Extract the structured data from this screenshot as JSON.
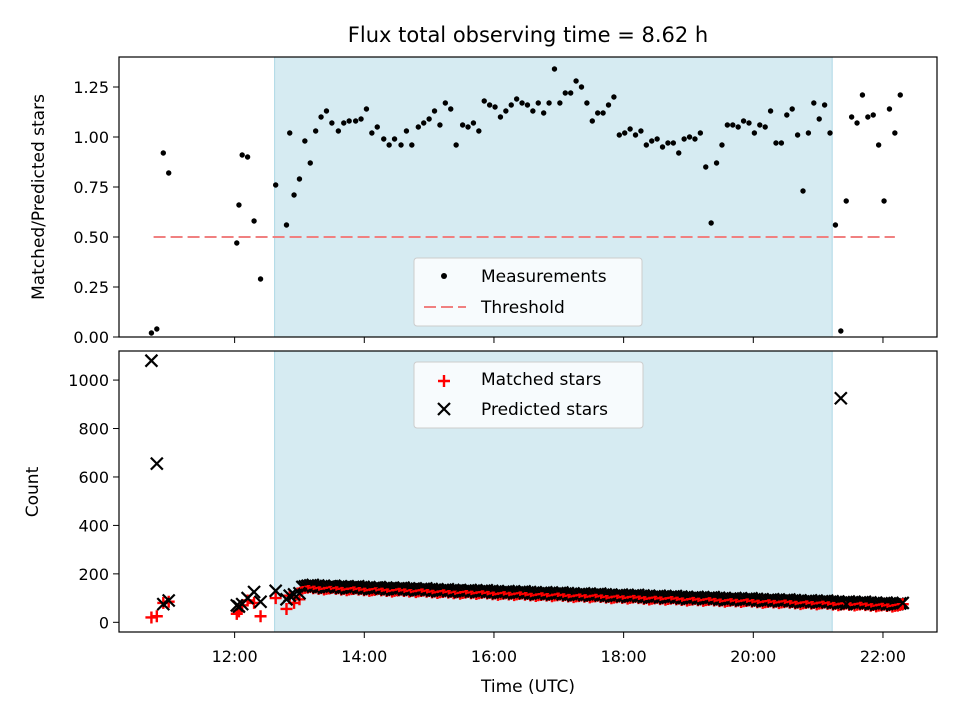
{
  "chart_data": [
    {
      "type": "scatter",
      "title": "Flux total observing time = 8.62 h",
      "xlabel": "",
      "ylabel": "Matched/Predicted stars",
      "xlim": [
        "10:13",
        "22:50"
      ],
      "ylim": [
        0,
        1.4
      ],
      "yticks": [
        "0.00",
        "0.25",
        "0.50",
        "0.75",
        "1.00",
        "1.25"
      ],
      "shaded_span": [
        "12:37",
        "21:13"
      ],
      "legend_position": "lower-center",
      "series": [
        {
          "name": "Measurements",
          "marker": "dot",
          "color": "#000000",
          "points": [
            [
              "10:43",
              0.02
            ],
            [
              "10:48",
              0.04
            ],
            [
              "10:54",
              0.92
            ],
            [
              "10:59",
              0.82
            ],
            [
              "12:02",
              0.47
            ],
            [
              "12:04",
              0.66
            ],
            [
              "12:07",
              0.91
            ],
            [
              "12:12",
              0.9
            ],
            [
              "12:18",
              0.58
            ],
            [
              "12:24",
              0.29
            ],
            [
              "12:38",
              0.76
            ],
            [
              "12:48",
              0.56
            ],
            [
              "12:51",
              1.02
            ],
            [
              "12:55",
              0.71
            ],
            [
              "13:00",
              0.79
            ],
            [
              "13:05",
              0.98
            ],
            [
              "13:10",
              0.87
            ],
            [
              "13:15",
              1.03
            ],
            [
              "13:20",
              1.1
            ],
            [
              "13:25",
              1.13
            ],
            [
              "13:30",
              1.07
            ],
            [
              "13:36",
              1.03
            ],
            [
              "13:41",
              1.07
            ],
            [
              "13:46",
              1.08
            ],
            [
              "13:52",
              1.08
            ],
            [
              "13:57",
              1.09
            ],
            [
              "14:02",
              1.14
            ],
            [
              "14:07",
              1.02
            ],
            [
              "14:12",
              1.05
            ],
            [
              "14:18",
              0.99
            ],
            [
              "14:23",
              0.96
            ],
            [
              "14:28",
              0.99
            ],
            [
              "14:34",
              0.96
            ],
            [
              "14:39",
              1.03
            ],
            [
              "14:44",
              0.96
            ],
            [
              "14:50",
              1.05
            ],
            [
              "14:55",
              1.07
            ],
            [
              "15:00",
              1.09
            ],
            [
              "15:05",
              1.13
            ],
            [
              "15:10",
              1.06
            ],
            [
              "15:15",
              1.17
            ],
            [
              "15:20",
              1.14
            ],
            [
              "15:25",
              0.96
            ],
            [
              "15:31",
              1.06
            ],
            [
              "15:36",
              1.05
            ],
            [
              "15:41",
              1.07
            ],
            [
              "15:46",
              1.03
            ],
            [
              "15:51",
              1.18
            ],
            [
              "15:56",
              1.16
            ],
            [
              "16:01",
              1.15
            ],
            [
              "16:06",
              1.1
            ],
            [
              "16:11",
              1.13
            ],
            [
              "16:16",
              1.16
            ],
            [
              "16:21",
              1.19
            ],
            [
              "16:26",
              1.17
            ],
            [
              "16:31",
              1.16
            ],
            [
              "16:36",
              1.13
            ],
            [
              "16:41",
              1.17
            ],
            [
              "16:46",
              1.12
            ],
            [
              "16:51",
              1.17
            ],
            [
              "16:56",
              1.34
            ],
            [
              "17:01",
              1.17
            ],
            [
              "17:06",
              1.22
            ],
            [
              "17:11",
              1.22
            ],
            [
              "17:16",
              1.28
            ],
            [
              "17:21",
              1.25
            ],
            [
              "17:26",
              1.17
            ],
            [
              "17:31",
              1.08
            ],
            [
              "17:36",
              1.12
            ],
            [
              "17:41",
              1.12
            ],
            [
              "17:46",
              1.16
            ],
            [
              "17:51",
              1.2
            ],
            [
              "17:56",
              1.01
            ],
            [
              "18:01",
              1.02
            ],
            [
              "18:06",
              1.04
            ],
            [
              "18:11",
              1.01
            ],
            [
              "18:16",
              1.03
            ],
            [
              "18:21",
              0.96
            ],
            [
              "18:26",
              0.98
            ],
            [
              "18:31",
              0.99
            ],
            [
              "18:36",
              0.95
            ],
            [
              "18:41",
              0.97
            ],
            [
              "18:46",
              0.97
            ],
            [
              "18:51",
              0.92
            ],
            [
              "18:56",
              0.99
            ],
            [
              "19:01",
              1.0
            ],
            [
              "19:06",
              0.99
            ],
            [
              "19:11",
              1.02
            ],
            [
              "19:16",
              0.85
            ],
            [
              "19:21",
              0.57
            ],
            [
              "19:26",
              0.87
            ],
            [
              "19:31",
              0.96
            ],
            [
              "19:36",
              1.06
            ],
            [
              "19:41",
              1.06
            ],
            [
              "19:46",
              1.05
            ],
            [
              "19:51",
              1.08
            ],
            [
              "19:56",
              1.07
            ],
            [
              "20:01",
              1.02
            ],
            [
              "20:06",
              1.06
            ],
            [
              "20:11",
              1.05
            ],
            [
              "20:16",
              1.13
            ],
            [
              "20:21",
              0.97
            ],
            [
              "20:26",
              0.97
            ],
            [
              "20:31",
              1.11
            ],
            [
              "20:36",
              1.14
            ],
            [
              "20:41",
              1.01
            ],
            [
              "20:46",
              0.73
            ],
            [
              "20:51",
              1.02
            ],
            [
              "20:56",
              1.17
            ],
            [
              "21:01",
              1.09
            ],
            [
              "21:06",
              1.16
            ],
            [
              "21:11",
              1.02
            ],
            [
              "21:16",
              0.56
            ],
            [
              "21:21",
              0.03
            ],
            [
              "21:26",
              0.68
            ],
            [
              "21:31",
              1.1
            ],
            [
              "21:36",
              1.07
            ],
            [
              "21:41",
              1.21
            ],
            [
              "21:46",
              1.1
            ],
            [
              "21:51",
              1.11
            ],
            [
              "21:56",
              0.96
            ],
            [
              "22:01",
              0.68
            ],
            [
              "22:06",
              1.14
            ],
            [
              "22:11",
              1.02
            ],
            [
              "22:16",
              1.21
            ]
          ]
        },
        {
          "name": "Threshold",
          "line": "dashed",
          "color": "#f08080",
          "points": [
            [
              "10:45",
              0.5
            ],
            [
              "22:11",
              0.5
            ]
          ]
        }
      ]
    },
    {
      "type": "scatter",
      "title": "",
      "xlabel": "Time (UTC)",
      "ylabel": "Count",
      "xlim": [
        "10:13",
        "22:50"
      ],
      "ylim": [
        -40,
        1120
      ],
      "yticks": [
        "0",
        "200",
        "400",
        "600",
        "800",
        "1000"
      ],
      "xticks": [
        "12:00",
        "14:00",
        "16:00",
        "18:00",
        "20:00",
        "22:00"
      ],
      "shaded_span": [
        "12:37",
        "21:13"
      ],
      "legend_position": "upper-center",
      "series": [
        {
          "name": "Matched stars",
          "marker": "plus",
          "color": "#ff0000",
          "points": [
            [
              "10:43",
              20
            ],
            [
              "10:48",
              25
            ],
            [
              "10:54",
              80
            ],
            [
              "10:59",
              85
            ],
            [
              "12:02",
              35
            ],
            [
              "12:04",
              45
            ],
            [
              "12:07",
              70
            ],
            [
              "12:12",
              90
            ],
            [
              "12:18",
              80
            ],
            [
              "12:24",
              25
            ],
            [
              "12:38",
              100
            ],
            [
              "12:48",
              55
            ],
            [
              "12:51",
              110
            ],
            [
              "12:55",
              80
            ],
            [
              "13:00",
              95
            ]
          ]
        },
        {
          "name": "Predicted stars",
          "marker": "x",
          "color": "#000000",
          "points": [
            [
              "10:43",
              1080
            ],
            [
              "10:48",
              655
            ],
            [
              "10:54",
              75
            ],
            [
              "10:59",
              90
            ],
            [
              "12:02",
              70
            ],
            [
              "12:04",
              65
            ],
            [
              "12:07",
              75
            ],
            [
              "12:12",
              100
            ],
            [
              "12:18",
              125
            ],
            [
              "12:24",
              85
            ],
            [
              "12:38",
              130
            ],
            [
              "12:48",
              95
            ],
            [
              "12:51",
              110
            ],
            [
              "12:55",
              115
            ],
            [
              "13:00",
              120
            ],
            [
              "21:21",
              925
            ],
            [
              "21:26",
              75
            ]
          ]
        }
      ]
    }
  ]
}
